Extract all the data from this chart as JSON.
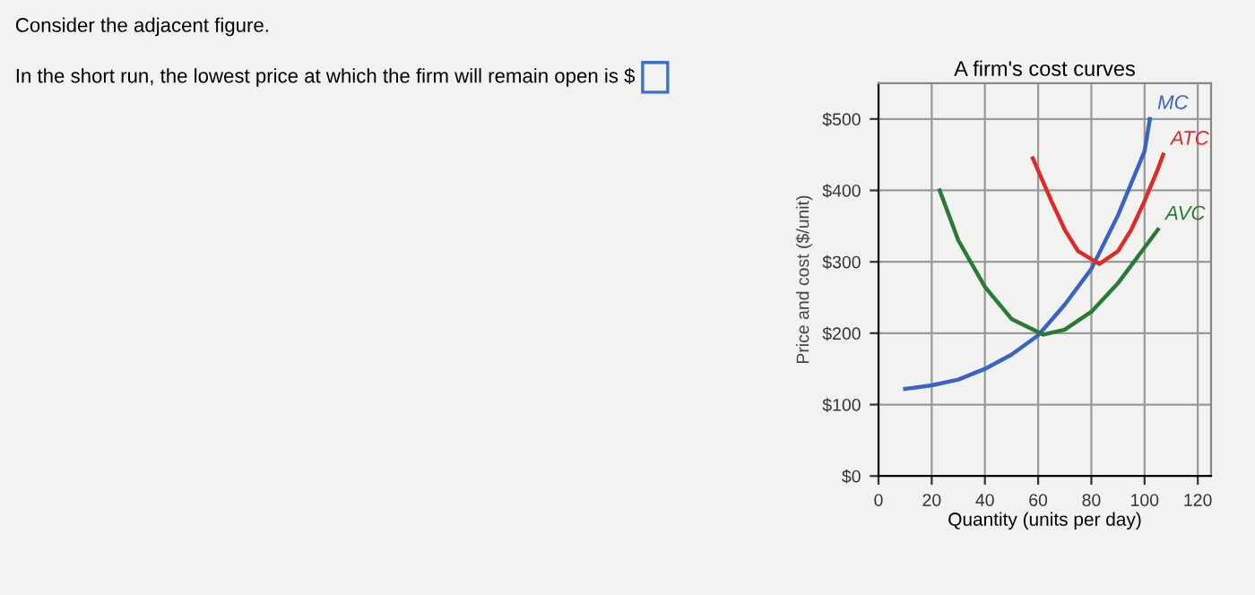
{
  "chart_data": {
    "type": "line",
    "title": "A firm's cost curves",
    "xlabel": "Quantity (units per day)",
    "ylabel": "Price and cost ($/unit)",
    "annotations": [
      "Consider the adjacent figure.",
      "In the short run, the lowest price at which the firm will remain open is $"
    ],
    "series": [
      {
        "name": "MC",
        "color": "#3a63c8",
        "x": [
          10,
          20,
          30,
          40,
          50,
          60,
          70,
          80,
          90,
          100,
          102
        ],
        "values": [
          122,
          127,
          135,
          150,
          170,
          197,
          240,
          290,
          365,
          455,
          500
        ]
      },
      {
        "name": "ATC",
        "color": "#e02a2a",
        "x": [
          58,
          65,
          70,
          75,
          83,
          90,
          95,
          100,
          105,
          107
        ],
        "values": [
          445,
          385,
          345,
          315,
          297,
          315,
          345,
          385,
          430,
          450
        ]
      },
      {
        "name": "AVC",
        "color": "#2a7a35",
        "x": [
          23,
          30,
          40,
          50,
          62,
          70,
          80,
          90,
          100,
          105
        ],
        "values": [
          400,
          330,
          265,
          220,
          198,
          205,
          230,
          270,
          320,
          345
        ]
      }
    ],
    "xlim": [
      0,
      125
    ],
    "ylim": [
      0,
      550
    ],
    "xticks": [
      0,
      20,
      40,
      60,
      80,
      100,
      120
    ],
    "yticks": [
      {
        "value": 0,
        "label": "$0"
      },
      {
        "value": 100,
        "label": "$100"
      },
      {
        "value": 200,
        "label": "$200"
      },
      {
        "value": 300,
        "label": "$300"
      },
      {
        "value": 400,
        "label": "$400"
      },
      {
        "value": 500,
        "label": "$500"
      }
    ],
    "grid": true,
    "marker": "none",
    "line_style": "solid"
  }
}
